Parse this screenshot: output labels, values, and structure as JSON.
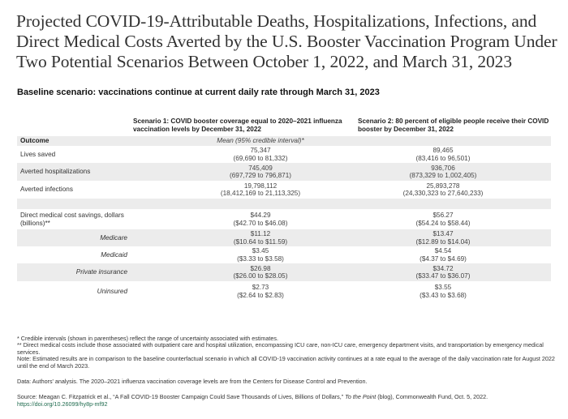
{
  "title": {
    "line1": "Projected COVID-19-Attributable Deaths, Hospitalizations, Infections, and",
    "line2": "Direct Medical Costs Averted by the U.S. Booster Vaccination Program Under",
    "line3": "Two Potential Scenarios Between October 1, 2022, and March 31, 2023"
  },
  "subtitle": "Baseline scenario: vaccinations continue at current daily rate through March 31, 2023",
  "columns": {
    "scenario1": "Scenario 1: COVID booster coverage equal to 2020–2021 influenza vaccination levels by December 31, 2022",
    "scenario2": "Scenario 2: 80 percent of eligible people receive their COVID booster by December 31, 2022"
  },
  "table": {
    "header": {
      "label": "Outcome",
      "c1": "Mean (95% credible interval)*"
    },
    "rows": [
      {
        "label": "Lives saved",
        "c1_mean": "75,347",
        "c1_ci": "(69,690 to 81,332)",
        "c2_mean": "89,465",
        "c2_ci": "(83,416 to 96,501)"
      },
      {
        "label": "Averted hospitalizations",
        "c1_mean": "745,409",
        "c1_ci": "(697,729 to 796,871)",
        "c2_mean": "936,706",
        "c2_ci": "(873,329 to 1,002,405)"
      },
      {
        "label": "Averted infections",
        "c1_mean": "19,798,112",
        "c1_ci": "(18,412,169 to 21,113,325)",
        "c2_mean": "25,893,278",
        "c2_ci": "(24,330,323 to 27,640,233)"
      },
      {
        "label": "Direct medical cost savings, dollars (billions)**",
        "c1_mean": "$44.29",
        "c1_ci": "($42.70 to $46.08)",
        "c2_mean": "$56.27",
        "c2_ci": "($54.24 to $58.44)"
      },
      {
        "label": "Medicare",
        "c1_mean": "$11.12",
        "c1_ci": "($10.64 to $11.59)",
        "c2_mean": "$13.47",
        "c2_ci": "($12.89 to $14.04)"
      },
      {
        "label": "Medicaid",
        "c1_mean": "$3.45",
        "c1_ci": "($3.33 to $3.58)",
        "c2_mean": "$4.54",
        "c2_ci": "($4.37 to $4.69)"
      },
      {
        "label": "Private insurance",
        "c1_mean": "$26.98",
        "c1_ci": "($26.00 to $28.05)",
        "c2_mean": "$34.72",
        "c2_ci": "($33.47 to $36.07)"
      },
      {
        "label": "Uninsured",
        "c1_mean": "$2.73",
        "c1_ci": "($2.64 to $2.83)",
        "c2_mean": "$3.55",
        "c2_ci": "($3.43 to $3.68)"
      }
    ]
  },
  "notes": {
    "n1": "* Credible intervals (shown in parentheses) reflect the range of uncertainty associated with estimates.",
    "n2": "** Direct medical costs include those associated with outpatient care and hospital utilization, encompassing ICU care, non-ICU care, emergency department visits, and transportation by emergency medical services.",
    "n3": "Note: Estimated results are in comparison to the baseline counterfactual scenario in which all COVID-19 vaccination activity continues at a rate equal to the average of the daily vaccination rate for August 2022 until the end of March 2023."
  },
  "data_source": "Data: Authors' analysis. The 2020–2021 influenza vaccination coverage levels are from the Centers for Disease Control and Prevention.",
  "source": {
    "prefix": "Source: Meagan C. Fitzpatrick et al., “A Fall COVID-19 Booster Campaign Could Save Thousands of Lives, Billions of Dollars,” ",
    "publication": "To the Point",
    "suffix": " (blog), Commonwealth Fund, Oct. 5, 2022.",
    "doi": "https://doi.org/10.26099/hy8p-mf92"
  },
  "colors": {
    "shade": "#ececec",
    "link": "#1f6b4e"
  }
}
